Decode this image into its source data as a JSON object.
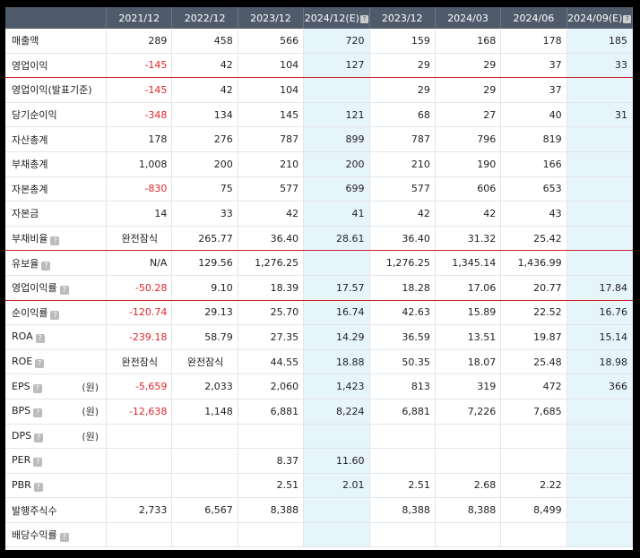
{
  "header": [
    "",
    "2021/12",
    "2022/12",
    "2023/12",
    "2024/12(E)",
    "2023/12",
    "2024/03",
    "2024/06",
    "2024/09(E)"
  ],
  "header_q": [
    false,
    false,
    false,
    false,
    true,
    false,
    false,
    false,
    true
  ],
  "rows": [
    {
      "label": "매출액",
      "q": false,
      "unit": "",
      "red": false,
      "values": [
        "289",
        "458",
        "566",
        "720",
        "159",
        "168",
        "178",
        "185"
      ]
    },
    {
      "label": "영업이익",
      "q": false,
      "unit": "",
      "red": true,
      "values": [
        "-145",
        "42",
        "104",
        "127",
        "29",
        "29",
        "37",
        "33"
      ]
    },
    {
      "label": "영업이익(발표기준)",
      "q": false,
      "unit": "",
      "red": false,
      "values": [
        "-145",
        "42",
        "104",
        "",
        "29",
        "29",
        "37",
        ""
      ]
    },
    {
      "label": "당기순이익",
      "q": false,
      "unit": "",
      "red": false,
      "values": [
        "-348",
        "134",
        "145",
        "121",
        "68",
        "27",
        "40",
        "31"
      ]
    },
    {
      "label": "자산총계",
      "q": false,
      "unit": "",
      "red": false,
      "values": [
        "178",
        "276",
        "787",
        "899",
        "787",
        "796",
        "819",
        ""
      ]
    },
    {
      "label": "부채총계",
      "q": false,
      "unit": "",
      "red": false,
      "values": [
        "1,008",
        "200",
        "210",
        "200",
        "210",
        "190",
        "166",
        ""
      ]
    },
    {
      "label": "자본총계",
      "q": false,
      "unit": "",
      "red": false,
      "values": [
        "-830",
        "75",
        "577",
        "699",
        "577",
        "606",
        "653",
        ""
      ]
    },
    {
      "label": "자본금",
      "q": false,
      "unit": "",
      "red": false,
      "values": [
        "14",
        "33",
        "42",
        "41",
        "42",
        "42",
        "43",
        ""
      ]
    },
    {
      "label": "부채비율",
      "q": true,
      "unit": "",
      "red": true,
      "values": [
        "완전잠식",
        "265.77",
        "36.40",
        "28.61",
        "36.40",
        "31.32",
        "25.42",
        ""
      ]
    },
    {
      "label": "유보율",
      "q": true,
      "unit": "",
      "red": false,
      "values": [
        "N/A",
        "129.56",
        "1,276.25",
        "",
        "1,276.25",
        "1,345.14",
        "1,436.99",
        ""
      ]
    },
    {
      "label": "영업이익률",
      "q": true,
      "unit": "",
      "red": true,
      "values": [
        "-50.28",
        "9.10",
        "18.39",
        "17.57",
        "18.28",
        "17.06",
        "20.77",
        "17.84"
      ]
    },
    {
      "label": "순이익률",
      "q": true,
      "unit": "",
      "red": false,
      "values": [
        "-120.74",
        "29.13",
        "25.70",
        "16.74",
        "42.63",
        "15.89",
        "22.52",
        "16.76"
      ]
    },
    {
      "label": "ROA",
      "q": true,
      "unit": "",
      "red": false,
      "values": [
        "-239.18",
        "58.79",
        "27.35",
        "14.29",
        "36.59",
        "13.51",
        "19.87",
        "15.14"
      ]
    },
    {
      "label": "ROE",
      "q": true,
      "unit": "",
      "red": false,
      "values": [
        "완전잠식",
        "완전잠식",
        "44.55",
        "18.88",
        "50.35",
        "18.07",
        "25.48",
        "18.98"
      ]
    },
    {
      "label": "EPS",
      "q": true,
      "unit": "(원)",
      "red": false,
      "values": [
        "-5,659",
        "2,033",
        "2,060",
        "1,423",
        "813",
        "319",
        "472",
        "366"
      ]
    },
    {
      "label": "BPS",
      "q": true,
      "unit": "(원)",
      "red": false,
      "values": [
        "-12,638",
        "1,148",
        "6,881",
        "8,224",
        "6,881",
        "7,226",
        "7,685",
        ""
      ]
    },
    {
      "label": "DPS",
      "q": true,
      "unit": "(원)",
      "red": false,
      "values": [
        "",
        "",
        "",
        "",
        "",
        "",
        "",
        ""
      ]
    },
    {
      "label": "PER",
      "q": true,
      "unit": "",
      "red": false,
      "values": [
        "",
        "",
        "8.37",
        "11.60",
        "",
        "",
        "",
        ""
      ]
    },
    {
      "label": "PBR",
      "q": true,
      "unit": "",
      "red": false,
      "values": [
        "",
        "",
        "2.51",
        "2.01",
        "2.51",
        "2.68",
        "2.22",
        ""
      ]
    },
    {
      "label": "발행주식수",
      "q": false,
      "unit": "",
      "red": false,
      "values": [
        "2,733",
        "6,567",
        "8,388",
        "",
        "8,388",
        "8,388",
        "8,499",
        ""
      ]
    },
    {
      "label": "배당수익률",
      "q": true,
      "unit": "",
      "red": false,
      "values": [
        "",
        "",
        "",
        "",
        "",
        "",
        "",
        ""
      ]
    }
  ],
  "icons": {
    "help": "help-icon"
  },
  "colors": {
    "header_bg": "#4f5b6b",
    "estimate_bg": "#e6f4fb",
    "negative": "#e0262a",
    "section_line": "#c8262a"
  }
}
